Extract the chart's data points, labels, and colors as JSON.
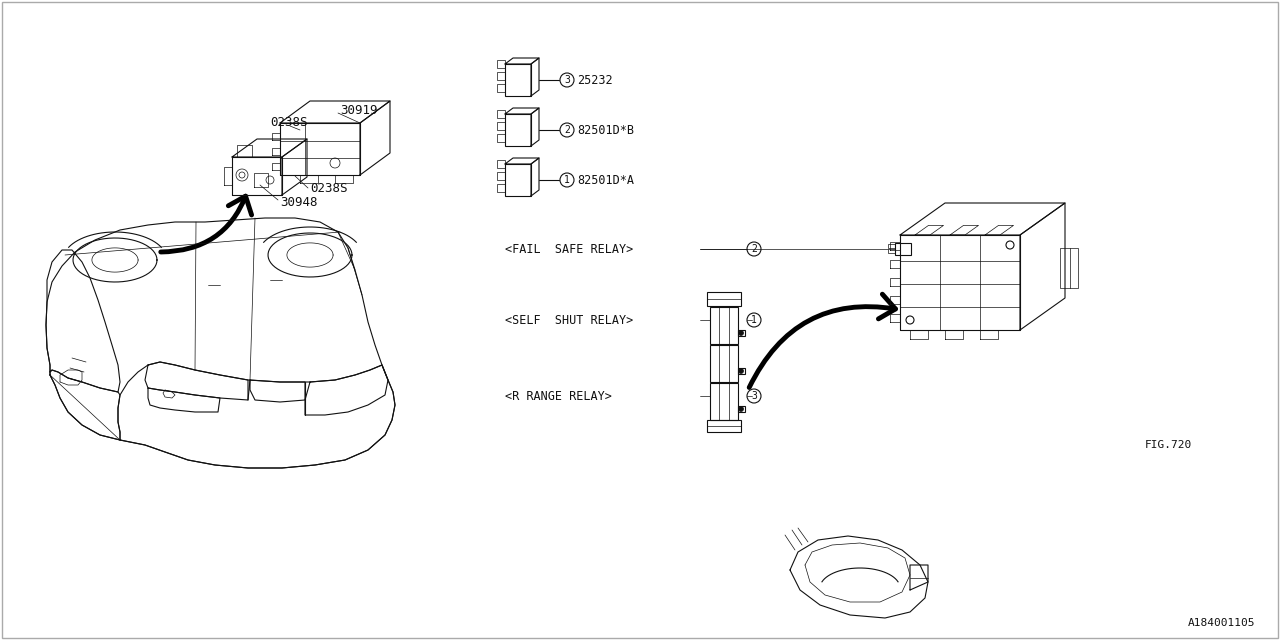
{
  "bg_color": "#ffffff",
  "line_color": "#111111",
  "border_color": "#aaaaaa",
  "fig_ref": "FIG.720",
  "diagram_id": "A184001105",
  "part_30948": "30948",
  "part_30919": "30919",
  "part_0238S": "0238S",
  "part_82501DA": "82501D*A",
  "part_82501DB": "82501D*B",
  "part_25232": "25232",
  "label_self_shut": "<SELF  SHUT RELAY>",
  "label_r_range": "<R RANGE RELAY>",
  "label_fail_safe": "<FAIL  SAFE RELAY>",
  "callout_1": "1",
  "callout_2": "2",
  "callout_3": "3"
}
